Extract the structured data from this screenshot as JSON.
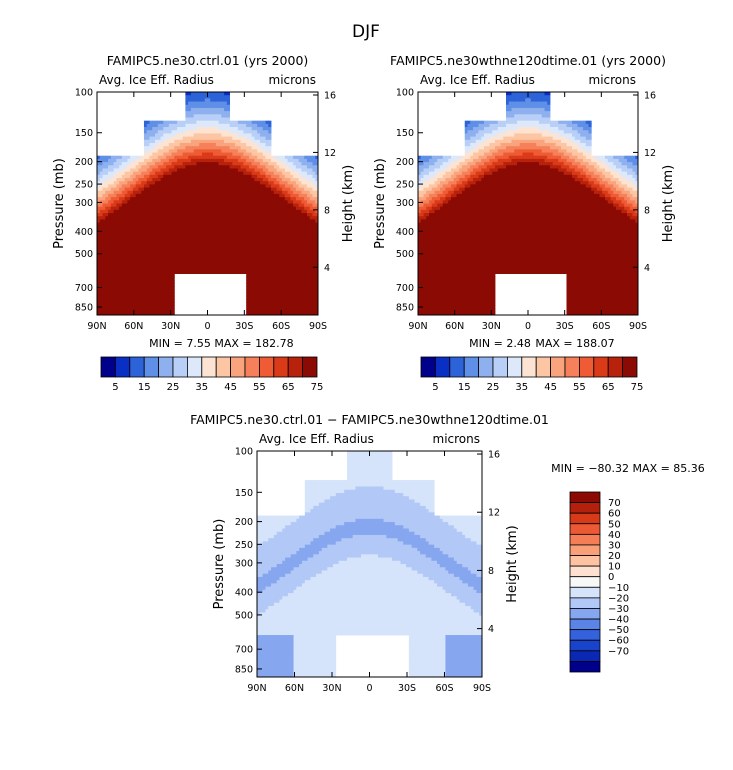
{
  "figure": {
    "title": "DJF"
  },
  "colors": {
    "abs_palette": [
      "#00008b",
      "#0a2fc4",
      "#2c63d8",
      "#5f8fe6",
      "#8eb0ef",
      "#b8d0f7",
      "#dde9fb",
      "#fde4d2",
      "#fcc6a5",
      "#f9a47c",
      "#f5805a",
      "#ee5b35",
      "#d93a18",
      "#b8220c",
      "#8b0a04"
    ],
    "diff_palette": [
      "#00008b",
      "#0a28b4",
      "#1a43cc",
      "#3461dc",
      "#5a84e6",
      "#86a6ef",
      "#b2c8f6",
      "#d6e4fb",
      "#f8f8f8",
      "#fde0cf",
      "#fcc2a2",
      "#f9a079",
      "#f57e57",
      "#ec5935",
      "#d63a18",
      "#b3200b",
      "#8b0a04"
    ]
  },
  "chart_data": [
    {
      "type": "heatmap",
      "title": "FAMIPC5.ne30.ctrl.01 (yrs 2000)",
      "variable_label": "Avg. Ice Eff. Radius",
      "units_label": "microns",
      "ylabel": "Pressure (mb)",
      "ylabel_right": "Height (km)",
      "x_ticks": [
        "90N",
        "60N",
        "30N",
        "0",
        "30S",
        "60S",
        "90S"
      ],
      "y_ticks": [
        "100",
        "150",
        "200",
        "250",
        "300",
        "400",
        "500",
        "700",
        "850"
      ],
      "y2_ticks": [
        "16",
        "12",
        "8",
        "4"
      ],
      "stats": {
        "min": "7.55",
        "max": "182.78"
      },
      "min_text": "MIN =    7.55",
      "max_text": "MAX = 182.78",
      "colorbar": {
        "orientation": "horizontal",
        "labels": [
          "5",
          "15",
          "25",
          "35",
          "45",
          "55",
          "65",
          "75"
        ]
      }
    },
    {
      "type": "heatmap",
      "title": "FAMIPC5.ne30wthne120dtime.01 (yrs 2000)",
      "variable_label": "Avg. Ice Eff. Radius",
      "units_label": "microns",
      "ylabel": "Pressure (mb)",
      "ylabel_right": "Height (km)",
      "x_ticks": [
        "90N",
        "60N",
        "30N",
        "0",
        "30S",
        "60S",
        "90S"
      ],
      "y_ticks": [
        "100",
        "150",
        "200",
        "250",
        "300",
        "400",
        "500",
        "700",
        "850"
      ],
      "y2_ticks": [
        "16",
        "12",
        "8",
        "4"
      ],
      "stats": {
        "min": "2.48",
        "max": "188.07"
      },
      "min_text": "MIN =    2.48",
      "max_text": "MAX = 188.07",
      "colorbar": {
        "orientation": "horizontal",
        "labels": [
          "5",
          "15",
          "25",
          "35",
          "45",
          "55",
          "65",
          "75"
        ]
      }
    },
    {
      "type": "heatmap",
      "title": "FAMIPC5.ne30.ctrl.01 − FAMIPC5.ne30wthne120dtime.01",
      "variable_label": "Avg. Ice Eff. Radius",
      "units_label": "microns",
      "ylabel": "Pressure (mb)",
      "ylabel_right": "Height (km)",
      "x_ticks": [
        "90N",
        "60N",
        "30N",
        "0",
        "30S",
        "60S",
        "90S"
      ],
      "y_ticks": [
        "100",
        "150",
        "200",
        "250",
        "300",
        "400",
        "500",
        "700",
        "850"
      ],
      "y2_ticks": [
        "16",
        "12",
        "8",
        "4"
      ],
      "stats": {
        "min": "-80.32",
        "max": "85.36"
      },
      "minmax_text": "MIN = −80.32   MAX =  85.36",
      "colorbar": {
        "orientation": "vertical",
        "labels": [
          "70",
          "60",
          "50",
          "40",
          "30",
          "20",
          "10",
          "0",
          "−10",
          "−20",
          "−30",
          "−40",
          "−50",
          "−60",
          "−70"
        ]
      }
    }
  ]
}
